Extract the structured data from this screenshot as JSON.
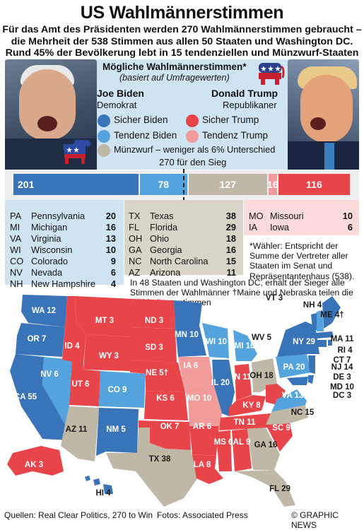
{
  "title": "US Wahlmännerstimmen",
  "subtitle_lines": [
    "Für das Amt des Präsidenten werden 270 Wahlmännerstimmen gebraucht –",
    "die Mehrheit der 538 Stimmen aus allen 50 Staaten und Washington DC.",
    "Rund 45% der Bevölkerung lebt in 15 tendenziellen und Münzwurf-Staaten"
  ],
  "panel": {
    "heading": "Mögliche Wahlmännerstimmen*",
    "heading_sub": "(basiert auf Umfragewerten)",
    "biden": {
      "name": "Joe Biden",
      "party": "Demokrat"
    },
    "trump": {
      "name": "Donald Trump",
      "party": "Republikaner"
    }
  },
  "legend": {
    "safe_biden": "Sicher Biden",
    "lean_biden": "Tendenz Biden",
    "safe_trump": "Sicher Trump",
    "lean_trump": "Tendenz Trump",
    "tossup": "Münzwurf – weniger als 6% Unterschied"
  },
  "bar": {
    "win_label": "270 für den Sieg",
    "total": 538,
    "win": 270,
    "segments": [
      {
        "key": "safe_biden",
        "value": 201,
        "color": "#3a74b8"
      },
      {
        "key": "lean_biden",
        "value": 78,
        "color": "#54a3dc"
      },
      {
        "key": "tossup",
        "value": 127,
        "color": "#c0b8a6"
      },
      {
        "key": "lean_trump",
        "value": 16,
        "color": "#f19b9b"
      },
      {
        "key": "safe_trump",
        "value": 116,
        "color": "#e8454a"
      }
    ],
    "labels": [
      "201",
      "78",
      "127",
      "16",
      "116"
    ]
  },
  "lean_biden_states": [
    {
      "ab": "PA",
      "name": "Pennsylvania",
      "ev": "20"
    },
    {
      "ab": "MI",
      "name": "Michigan",
      "ev": "16"
    },
    {
      "ab": "VA",
      "name": "Virginia",
      "ev": "13"
    },
    {
      "ab": "WI",
      "name": "Wisconsin",
      "ev": "10"
    },
    {
      "ab": "CO",
      "name": "Colorado",
      "ev": "9"
    },
    {
      "ab": "NV",
      "name": "Nevada",
      "ev": "6"
    },
    {
      "ab": "NH",
      "name": "New Hampshire",
      "ev": "4"
    }
  ],
  "tossup_states": [
    {
      "ab": "TX",
      "name": "Texas",
      "ev": "38"
    },
    {
      "ab": "FL",
      "name": "Florida",
      "ev": "29"
    },
    {
      "ab": "OH",
      "name": "Ohio",
      "ev": "18"
    },
    {
      "ab": "GA",
      "name": "Georgia",
      "ev": "16"
    },
    {
      "ab": "NC",
      "name": "North Carolina",
      "ev": "15"
    },
    {
      "ab": "AZ",
      "name": "Arizona",
      "ev": "11"
    }
  ],
  "lean_trump_states": [
    {
      "ab": "MO",
      "name": "Missouri",
      "ev": "10"
    },
    {
      "ab": "IA",
      "name": "Iowa",
      "ev": "6"
    }
  ],
  "note_voters": "*Wähler: Entspricht der Summe der Vertreter aller Staaten im Senat und Repräsentantenhaus (538).",
  "note_maine": "In 48 Staaten und Washington DC, erhält der Sieger alle Stimmen der Wahlmänner †Maine und Nebraska teilen die Wahlmännerstimmen",
  "map_labels": {
    "WA": "WA 12",
    "OR": "OR 7",
    "CA": "CA 55",
    "NV": "NV 6",
    "ID": "ID 4",
    "MT": "MT 3",
    "WY": "WY 3",
    "UT": "UT 6",
    "CO": "CO 9",
    "AZ": "AZ 11",
    "NM": "NM 5",
    "ND": "ND 3",
    "SD": "SD 3",
    "NE": "NE 5†",
    "KS": "KS 6",
    "OK": "OK 7",
    "TX": "TX 38",
    "MN": "MN 10",
    "IA": "IA 6",
    "MO": "MO 10",
    "AR": "AR 6",
    "LA": "LA 8",
    "WI": "WI 10",
    "IL": "IL 20",
    "MI": "MI 16",
    "IN": "IN 11",
    "OH": "OH 18",
    "KY": "KY 8",
    "TN": "TN 11",
    "MS": "MS 6",
    "AL": "AL 9",
    "GA": "GA 16",
    "FL": "FL 29",
    "SC": "SC 9",
    "NC": "NC 15",
    "VA": "VA 13",
    "WV": "WV 5",
    "PA": "PA 20",
    "NY": "NY 29",
    "VT": "VT 3",
    "NH": "NH 4",
    "ME": "ME 4†",
    "MA": "MA 11",
    "RI": "RI 4",
    "CT": "CT 7",
    "NJ": "NJ 14",
    "DE": "DE 3",
    "MD": "MD 10",
    "DC": "DC 3",
    "AK": "AK 3",
    "HI": "HI 4"
  },
  "footer": {
    "sources": "Quellen: Real Clear Politics, 270 to Win",
    "photos": "Fotos: Associated Press",
    "credit": "© GRAPHIC NEWS"
  },
  "colors": {
    "safe_biden": "#3a74b8",
    "lean_biden": "#54a3dc",
    "safe_trump": "#e8454a",
    "lean_trump": "#f19b9b",
    "tossup": "#c0b8a6",
    "panel_bg": "#cfe4f2"
  }
}
